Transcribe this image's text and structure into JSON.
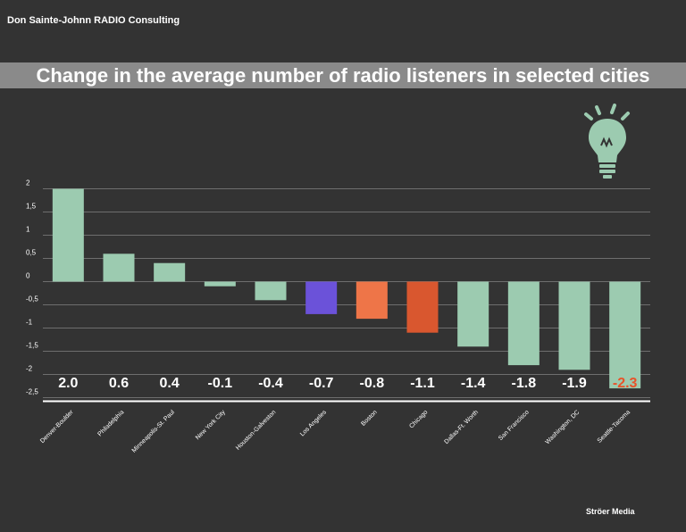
{
  "header": {
    "brand": "Don Sainte-Johnn RADIO Consulting",
    "title": "Change in the average number of radio listeners in selected cities"
  },
  "footer": {
    "source": "Ströer Media"
  },
  "icons": {
    "bulb": "lightbulb-icon"
  },
  "colors": {
    "background": "#333333",
    "title_band": "#8a8a8a",
    "default_bar": "#9ccbb0",
    "highlight_purple": "#6b52d9",
    "highlight_orange": "#ee7548",
    "highlight_red": "#d9572f",
    "accent_label": "#e8532a"
  },
  "chart_data": {
    "type": "bar",
    "title": "Change in the average number of radio listeners in selected cities",
    "xlabel": "",
    "ylabel": "",
    "grid": true,
    "ylim": [
      -2.5,
      2
    ],
    "yticks": [
      {
        "value": 2,
        "label": "2"
      },
      {
        "value": 1.5,
        "label": "1,5"
      },
      {
        "value": 1,
        "label": "1"
      },
      {
        "value": 0.5,
        "label": "0,5"
      },
      {
        "value": 0,
        "label": "0"
      },
      {
        "value": -0.5,
        "label": "-0,5"
      },
      {
        "value": -1,
        "label": "-1"
      },
      {
        "value": -1.5,
        "label": "-1,5"
      },
      {
        "value": -2,
        "label": "-2"
      },
      {
        "value": -2.5,
        "label": "-2,5"
      }
    ],
    "categories": [
      "Denver-Boulder",
      "Philadelphia",
      "Minneapolis-St. Paul",
      "New York City",
      "Houston-Galveston",
      "Los Angeles",
      "Boston",
      "Chicago",
      "Dallas-Ft. Worth",
      "San Francisco",
      "Washington, DC",
      "Seattle-Tacoma"
    ],
    "values": [
      2.0,
      0.6,
      0.4,
      -0.1,
      -0.4,
      -0.7,
      -0.8,
      -1.1,
      -1.4,
      -1.8,
      -1.9,
      -2.3
    ],
    "value_labels": [
      "2.0",
      "0.6",
      "0.4",
      "-0.1",
      "-0.4",
      "-0.7",
      "-0.8",
      "-1.1",
      "-1.4",
      "-1.8",
      "-1.9",
      "-2.3"
    ],
    "bar_colors": [
      "#9ccbb0",
      "#9ccbb0",
      "#9ccbb0",
      "#9ccbb0",
      "#9ccbb0",
      "#6b52d9",
      "#ee7548",
      "#d9572f",
      "#9ccbb0",
      "#9ccbb0",
      "#9ccbb0",
      "#9ccbb0"
    ],
    "label_colors": [
      "#ffffff",
      "#ffffff",
      "#ffffff",
      "#ffffff",
      "#ffffff",
      "#ffffff",
      "#ffffff",
      "#ffffff",
      "#ffffff",
      "#ffffff",
      "#ffffff",
      "#e8532a"
    ]
  }
}
